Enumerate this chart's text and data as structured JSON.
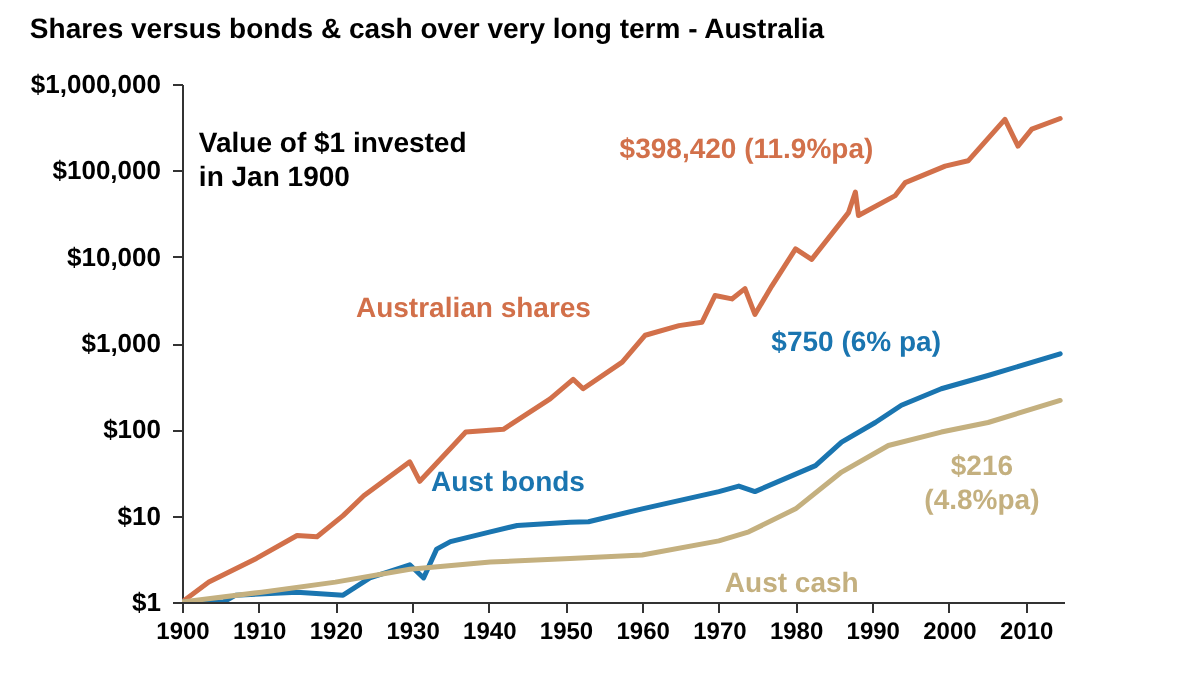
{
  "chart_data": {
    "type": "line",
    "title": "Shares versus bonds & cash over very long term - Australia",
    "log": "y",
    "xlim": [
      1900,
      2015
    ],
    "xticks": [
      1900,
      1910,
      1920,
      1930,
      1940,
      1950,
      1960,
      1970,
      1980,
      1990,
      2000,
      2010
    ],
    "ylim": [
      1,
      1000000
    ],
    "yticks": [
      {
        "value": 1,
        "label": "$1"
      },
      {
        "value": 10,
        "label": "$10"
      },
      {
        "value": 100,
        "label": "$100"
      },
      {
        "value": 1000,
        "label": "$1,000"
      },
      {
        "value": 10000,
        "label": "$10,000"
      },
      {
        "value": 100000,
        "label": "$100,000"
      },
      {
        "value": 1000000,
        "label": "$1,000,000"
      }
    ],
    "annotations": [
      "Value of $1 invested\nin Jan 1900",
      "$398,420 (11.9%pa)",
      "$750 (6% pa)",
      "$216\n(4.8%pa)"
    ],
    "series": [
      {
        "name": "Australian shares",
        "color": "#d2704a",
        "x": [
          1900,
          1903.5,
          1909.7,
          1915,
          1917.6,
          1921,
          1923.7,
          1929.7,
          1931,
          1935,
          1937,
          1941.9,
          1948,
          1951,
          1952.3,
          1957.4,
          1960.4,
          1964.8,
          1967.8,
          1969.5,
          1971.7,
          1973.4,
          1974.7,
          1976.9,
          1980,
          1982.1,
          1986.9,
          1987.8,
          1988.2,
          1993,
          1994.3,
          1999.5,
          2002.5,
          2007.3,
          2009,
          2010.8,
          2014.5
        ],
        "values": [
          1,
          1.7,
          3.2,
          5.9,
          5.7,
          10,
          17,
          42,
          25,
          60,
          93,
          100,
          225,
          380,
          295,
          600,
          1230,
          1590,
          1740,
          3550,
          3240,
          4260,
          2140,
          4570,
          12300,
          9300,
          32400,
          56000,
          30000,
          51000,
          72000,
          112000,
          129000,
          390000,
          191000,
          300000,
          398420
        ]
      },
      {
        "name": "Aust bonds",
        "color": "#1a75b0",
        "x": [
          1900,
          1905.4,
          1907,
          1915,
          1921,
          1924.5,
          1929.7,
          1931.5,
          1933.2,
          1935,
          1940.2,
          1943.7,
          1950.6,
          1953,
          1960,
          1970,
          1972.6,
          1974.7,
          1982.6,
          1986,
          1990.4,
          1993.8,
          1999,
          2005.1,
          2014.5
        ],
        "values": [
          1,
          1,
          1.2,
          1.3,
          1.2,
          1.9,
          2.7,
          1.9,
          4.1,
          5,
          6.5,
          7.7,
          8.4,
          8.5,
          12,
          19,
          22,
          19,
          38,
          71,
          120,
          190,
          295,
          420,
          750
        ]
      },
      {
        "name": "Aust cash",
        "color": "#c4b07f",
        "x": [
          1900,
          1910.4,
          1920,
          1929.7,
          1940.2,
          1950.6,
          1960,
          1970,
          1973.9,
          1980,
          1986,
          1992.1,
          1999,
          2005.1,
          2014.5
        ],
        "values": [
          1,
          1.3,
          1.7,
          2.4,
          2.9,
          3.2,
          3.5,
          5.1,
          6.5,
          12,
          32,
          65,
          93,
          120,
          216
        ]
      }
    ]
  }
}
